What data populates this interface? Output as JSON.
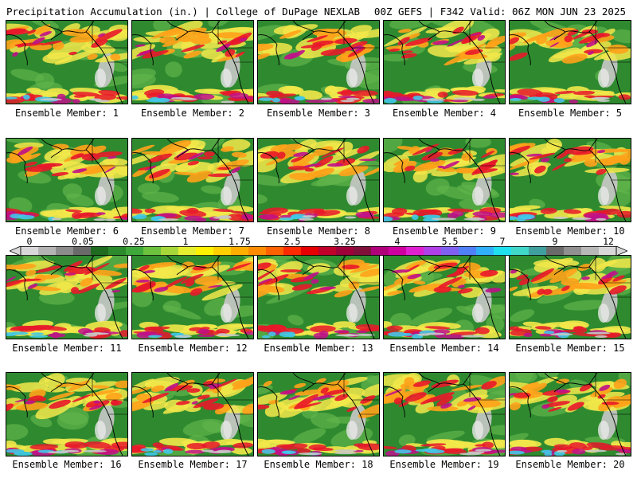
{
  "header": {
    "left_title": "Precipitation Accumulation (in.) | College of DuPage NEXLAB",
    "right_title": "00Z GEFS | F342 Valid: 06Z MON JUN 23 2025"
  },
  "colorbar": {
    "tick_labels": [
      "0",
      "0.05",
      "0.25",
      "1",
      "1.75",
      "2.5",
      "3.25",
      "4",
      "5.5",
      "7",
      "9",
      "12"
    ],
    "colors": [
      "#d8d8d8",
      "#b4b4b4",
      "#8c8c8c",
      "#6a6a6a",
      "#1f6b1f",
      "#2c8a2c",
      "#3fa83a",
      "#6cc23c",
      "#a6d83a",
      "#e6ee30",
      "#fff200",
      "#ffd000",
      "#ffae00",
      "#ff8c00",
      "#ff6000",
      "#ff2a00",
      "#e60000",
      "#c0002a",
      "#a0003a",
      "#80103a",
      "#b0007a",
      "#d000a0",
      "#e020d0",
      "#b040e8",
      "#8060f0",
      "#5080f8",
      "#30b0f8",
      "#20e0f0",
      "#40d8c8",
      "#40a0a0",
      "#6a6a6a",
      "#909090",
      "#b8b8b8",
      "#d8d8d8"
    ]
  },
  "panels": [
    {
      "caption": "Ensemble Member: 1"
    },
    {
      "caption": "Ensemble Member: 2"
    },
    {
      "caption": "Ensemble Member: 3"
    },
    {
      "caption": "Ensemble Member: 4"
    },
    {
      "caption": "Ensemble Member: 5"
    },
    {
      "caption": "Ensemble Member: 6"
    },
    {
      "caption": "Ensemble Member: 7"
    },
    {
      "caption": "Ensemble Member: 8"
    },
    {
      "caption": "Ensemble Member: 9"
    },
    {
      "caption": "Ensemble Member: 10"
    },
    {
      "caption": "Ensemble Member: 11"
    },
    {
      "caption": "Ensemble Member: 12"
    },
    {
      "caption": "Ensemble Member: 13"
    },
    {
      "caption": "Ensemble Member: 14"
    },
    {
      "caption": "Ensemble Member: 15"
    },
    {
      "caption": "Ensemble Member: 16"
    },
    {
      "caption": "Ensemble Member: 17"
    },
    {
      "caption": "Ensemble Member: 18"
    },
    {
      "caption": "Ensemble Member: 19"
    },
    {
      "caption": "Ensemble Member: 20"
    }
  ],
  "map_colors": {
    "ocean_green": "#2f8a2f",
    "light_green": "#5fb44a",
    "yellow": "#f2e84a",
    "orange": "#ffa21a",
    "red": "#e8182a",
    "magenta": "#c0108a",
    "purple": "#8a40d8",
    "cyan": "#40c8e8",
    "dry_gray": "#c8c8c8",
    "coast": "#000000"
  }
}
